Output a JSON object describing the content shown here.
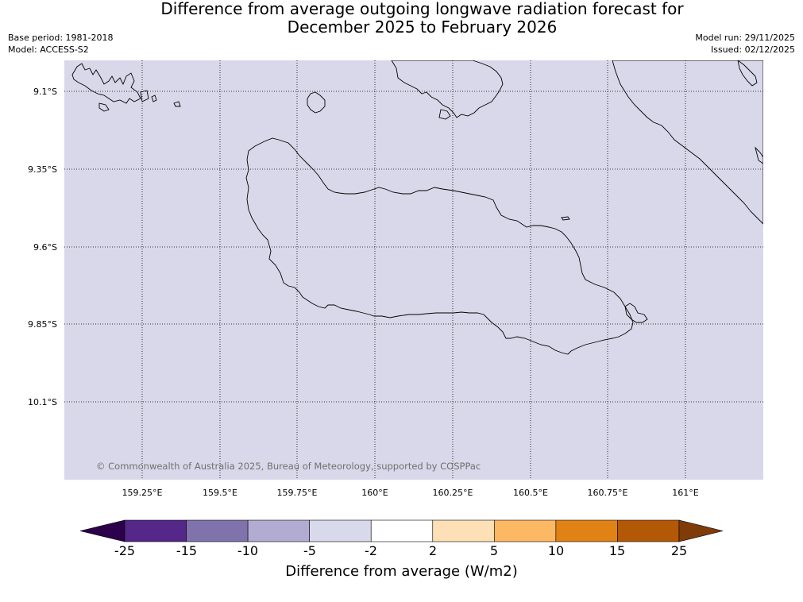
{
  "title": {
    "line1": "Difference from average outgoing longwave radiation forecast for",
    "line2": "December 2025 to February 2026"
  },
  "meta": {
    "base_period": "Base period: 1981-2018",
    "model": "Model: ACCESS-S2",
    "model_run": "Model run: 29/11/2025",
    "issued": "Issued: 02/12/2025"
  },
  "map": {
    "background_color": "#d8d8ea",
    "lat_labels": [
      "9.1°S",
      "9.35°S",
      "9.6°S",
      "9.85°S",
      "10.1°S"
    ],
    "lon_labels": [
      "159.25°E",
      "159.5°E",
      "159.75°E",
      "160°E",
      "160.25°E",
      "160.5°E",
      "160.75°E",
      "161°E"
    ],
    "copyright": "© Commonwealth of Australia 2025, Bureau of Meteorology, supported by COSPPac"
  },
  "colorbar": {
    "tick_labels": [
      "-25",
      "-15",
      "-10",
      "-5",
      "-2",
      "2",
      "5",
      "10",
      "15",
      "25"
    ],
    "colors": [
      "#2d004b",
      "#542788",
      "#8073ac",
      "#b2abd2",
      "#d8daeb",
      "#ffffff",
      "#fee0b6",
      "#fdb863",
      "#e08214",
      "#b35806",
      "#7f3b08"
    ],
    "title": "Difference from average (W/m2)"
  }
}
